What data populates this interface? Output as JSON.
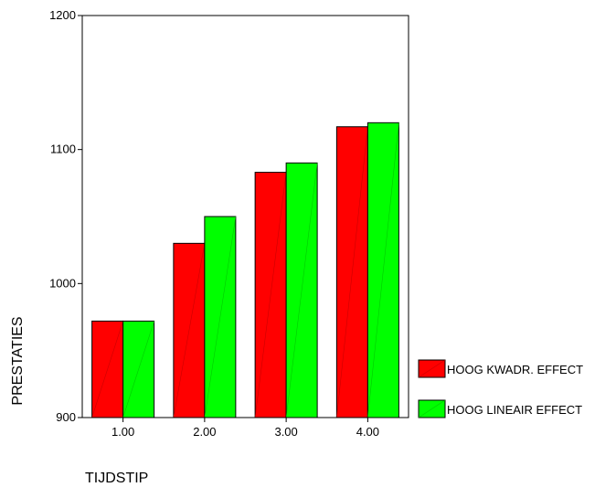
{
  "chart_data": {
    "type": "bar",
    "title": "",
    "xlabel": "TIJDSTIP",
    "ylabel": "PRESTATIES",
    "categories": [
      "1.00",
      "2.00",
      "3.00",
      "4.00"
    ],
    "yticks": [
      "900",
      "1000",
      "1100",
      "1200"
    ],
    "ylim": [
      900,
      1200
    ],
    "grid": false,
    "legend": "right",
    "series": [
      {
        "name": "HOOG KWADR. EFFECT",
        "color": "#ff0000",
        "values": [
          972,
          1030,
          1083,
          1117
        ]
      },
      {
        "name": "HOOG LINEAIR EFFECT",
        "color": "#00ff00",
        "values": [
          972,
          1050,
          1090,
          1120
        ]
      }
    ]
  }
}
